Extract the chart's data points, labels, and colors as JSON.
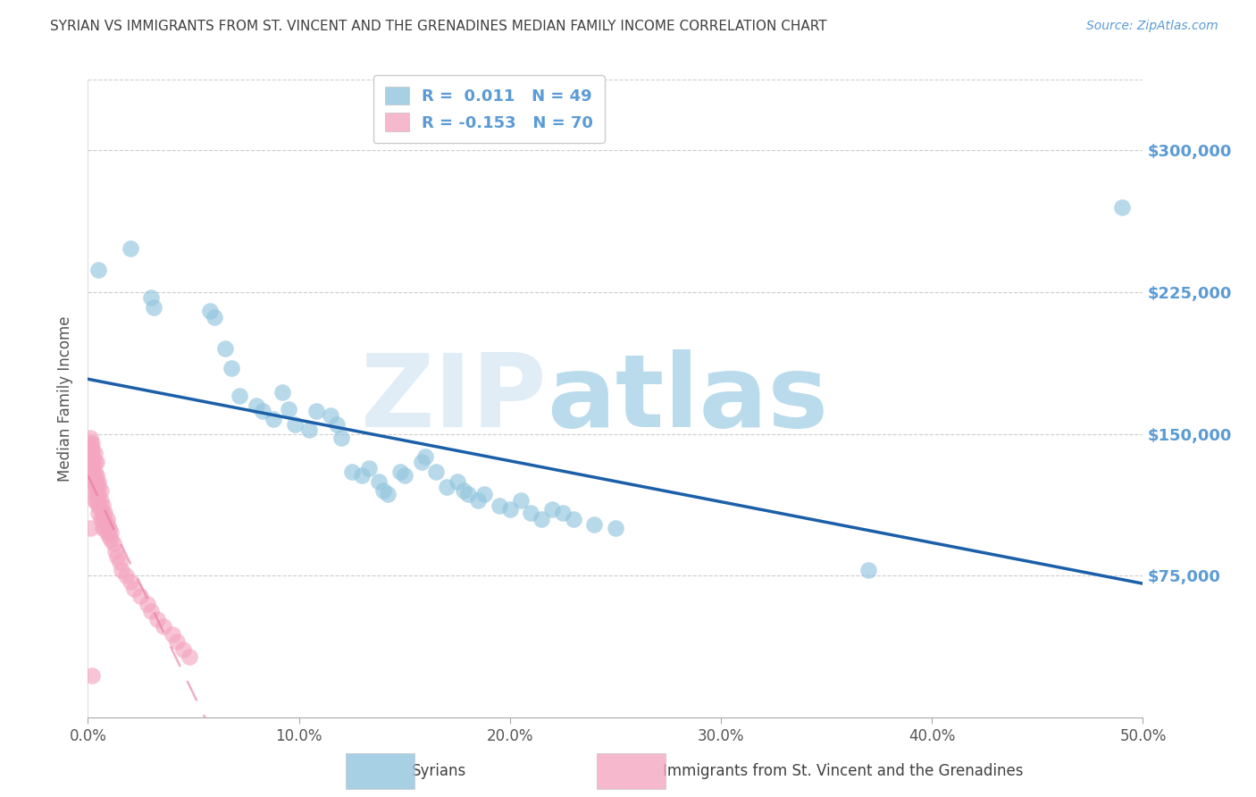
{
  "title": "SYRIAN VS IMMIGRANTS FROM ST. VINCENT AND THE GRENADINES MEDIAN FAMILY INCOME CORRELATION CHART",
  "source": "Source: ZipAtlas.com",
  "ylabel": "Median Family Income",
  "xlim": [
    0.0,
    0.5
  ],
  "ylim": [
    0,
    337500
  ],
  "yticks": [
    75000,
    150000,
    225000,
    300000
  ],
  "ytick_labels": [
    "$75,000",
    "$150,000",
    "$225,000",
    "$300,000"
  ],
  "xticks": [
    0.0,
    0.1,
    0.2,
    0.3,
    0.4,
    0.5
  ],
  "xtick_labels": [
    "0.0%",
    "10.0%",
    "20.0%",
    "30.0%",
    "40.0%",
    "50.0%"
  ],
  "label1": "Syrians",
  "label2": "Immigrants from St. Vincent and the Grenadines",
  "color_blue": "#92c5de",
  "color_pink": "#f4a6c0",
  "color_trend_blue": "#1a5fa8",
  "color_trend_pink": "#e8799a",
  "watermark_zip": "#c8dff0",
  "watermark_atlas": "#80bedd",
  "title_color": "#404040",
  "axis_label_color": "#5b9bd5",
  "grid_color": "#cccccc",
  "syrian_x": [
    0.005,
    0.02,
    0.03,
    0.031,
    0.058,
    0.06,
    0.065,
    0.068,
    0.072,
    0.08,
    0.083,
    0.088,
    0.092,
    0.095,
    0.098,
    0.105,
    0.108,
    0.115,
    0.118,
    0.12,
    0.125,
    0.13,
    0.133,
    0.138,
    0.14,
    0.142,
    0.148,
    0.15,
    0.158,
    0.16,
    0.165,
    0.17,
    0.175,
    0.178,
    0.18,
    0.185,
    0.188,
    0.195,
    0.2,
    0.205,
    0.21,
    0.215,
    0.22,
    0.225,
    0.23,
    0.24,
    0.25,
    0.37,
    0.49
  ],
  "syrian_y": [
    237000,
    248000,
    222000,
    217000,
    215000,
    212000,
    195000,
    185000,
    170000,
    165000,
    162000,
    158000,
    172000,
    163000,
    155000,
    152000,
    162000,
    160000,
    155000,
    148000,
    130000,
    128000,
    132000,
    125000,
    120000,
    118000,
    130000,
    128000,
    135000,
    138000,
    130000,
    122000,
    125000,
    120000,
    118000,
    115000,
    118000,
    112000,
    110000,
    115000,
    108000,
    105000,
    110000,
    108000,
    105000,
    102000,
    100000,
    78000,
    270000
  ],
  "stvincent_x": [
    0.001,
    0.001,
    0.001,
    0.001,
    0.001,
    0.002,
    0.002,
    0.002,
    0.002,
    0.002,
    0.002,
    0.002,
    0.002,
    0.003,
    0.003,
    0.003,
    0.003,
    0.003,
    0.003,
    0.003,
    0.003,
    0.004,
    0.004,
    0.004,
    0.004,
    0.004,
    0.004,
    0.005,
    0.005,
    0.005,
    0.005,
    0.005,
    0.005,
    0.006,
    0.006,
    0.006,
    0.006,
    0.007,
    0.007,
    0.007,
    0.007,
    0.008,
    0.008,
    0.008,
    0.009,
    0.009,
    0.009,
    0.01,
    0.01,
    0.011,
    0.011,
    0.012,
    0.013,
    0.014,
    0.015,
    0.016,
    0.018,
    0.02,
    0.022,
    0.025,
    0.028,
    0.03,
    0.033,
    0.036,
    0.04,
    0.042,
    0.045,
    0.048,
    0.001,
    0.002
  ],
  "stvincent_y": [
    148000,
    145000,
    143000,
    140000,
    137000,
    145000,
    142000,
    140000,
    137000,
    135000,
    132000,
    130000,
    127000,
    140000,
    135000,
    130000,
    127000,
    124000,
    122000,
    118000,
    115000,
    135000,
    128000,
    125000,
    122000,
    118000,
    114000,
    125000,
    122000,
    118000,
    115000,
    112000,
    108000,
    120000,
    115000,
    110000,
    105000,
    112000,
    108000,
    105000,
    100000,
    108000,
    104000,
    100000,
    105000,
    102000,
    98000,
    100000,
    96000,
    98000,
    94000,
    92000,
    88000,
    85000,
    82000,
    78000,
    75000,
    72000,
    68000,
    64000,
    60000,
    56000,
    52000,
    48000,
    44000,
    40000,
    36000,
    32000,
    100000,
    22000
  ]
}
